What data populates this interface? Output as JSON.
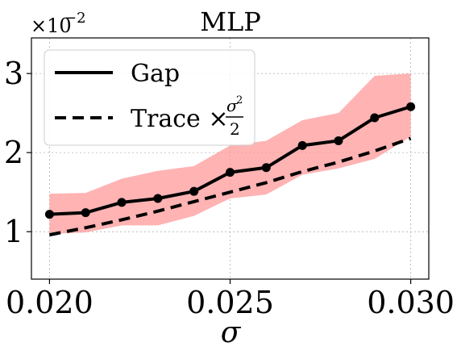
{
  "chart_data": {
    "type": "line",
    "title": "MLP",
    "xlabel": "σ",
    "ylabel": "",
    "y_scale_label": "×10",
    "y_scale_exponent": "−2",
    "xlim": [
      0.0195,
      0.0305
    ],
    "ylim": [
      0.4,
      3.45
    ],
    "xticks": [
      0.02,
      0.025,
      0.03
    ],
    "xtick_labels": [
      "0.020",
      "0.025",
      "0.030"
    ],
    "yticks": [
      1,
      2,
      3
    ],
    "ytick_labels": [
      "1",
      "2",
      "3"
    ],
    "grid": true,
    "legend_position": "top-left",
    "x": [
      0.02,
      0.021,
      0.022,
      0.023,
      0.024,
      0.025,
      0.026,
      0.027,
      0.028,
      0.029,
      0.03
    ],
    "series": [
      {
        "name": "Gap",
        "style": "solid",
        "markers": true,
        "color": "#000000",
        "values": [
          1.22,
          1.24,
          1.37,
          1.42,
          1.51,
          1.75,
          1.81,
          2.09,
          2.15,
          2.44,
          2.58
        ]
      },
      {
        "name": "Trace × σ²/2",
        "legend_text": "Trace ×",
        "legend_frac_num": "σ",
        "legend_frac_sup": "2",
        "legend_frac_den": "2",
        "style": "dashed",
        "markers": false,
        "color": "#000000",
        "values": [
          0.96,
          1.05,
          1.15,
          1.26,
          1.38,
          1.5,
          1.62,
          1.76,
          1.88,
          2.02,
          2.18
        ]
      }
    ],
    "band": {
      "color": "#ff9999",
      "lower": [
        0.97,
        0.99,
        1.08,
        1.08,
        1.2,
        1.42,
        1.47,
        1.72,
        1.8,
        1.92,
        2.2
      ],
      "upper": [
        1.48,
        1.49,
        1.67,
        1.77,
        1.83,
        2.09,
        2.15,
        2.41,
        2.5,
        2.97,
        3.0
      ]
    }
  }
}
